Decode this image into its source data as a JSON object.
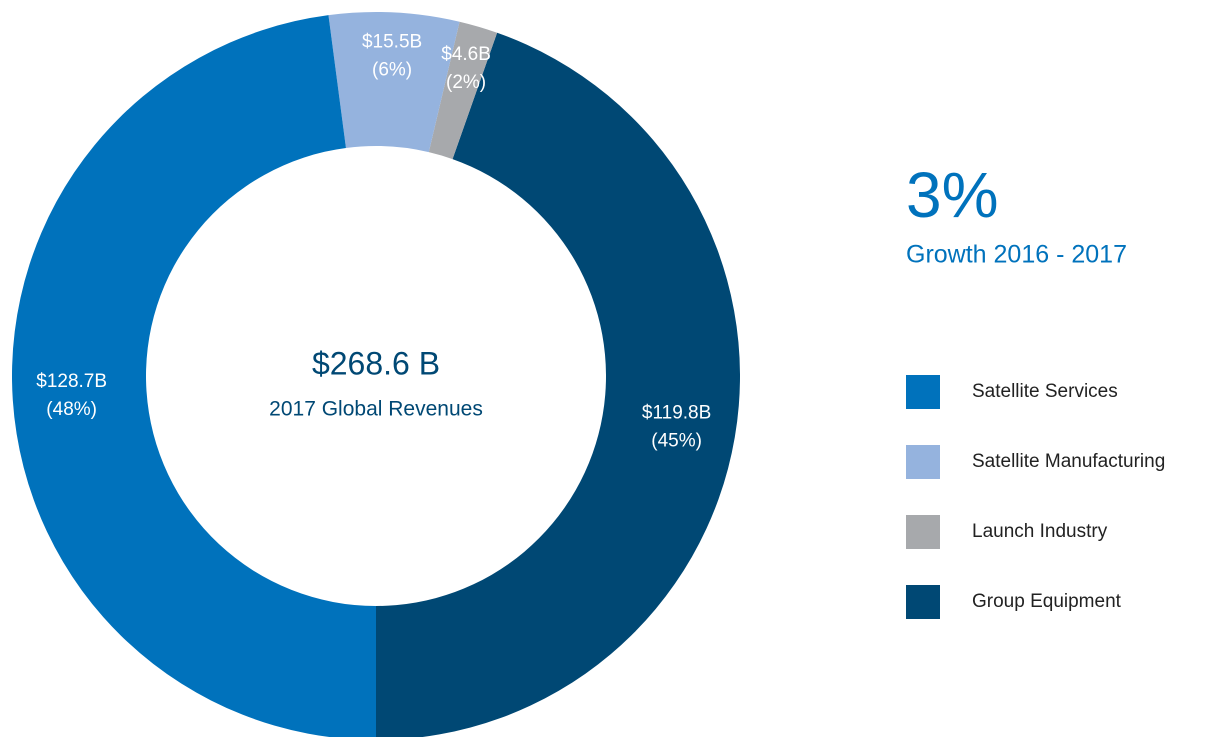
{
  "chart_data": {
    "type": "donut",
    "center_title": "$268.6 B",
    "center_subtitle": "2017 Global Revenues",
    "callout_value": "3%",
    "callout_label": "Growth 2016 - 2017",
    "categories": [
      "Satellite Services",
      "Satellite Manufacturing",
      "Launch Industry",
      "Group Equipment"
    ],
    "values": [
      128.7,
      15.5,
      4.6,
      119.8
    ],
    "value_labels": [
      "$128.7B",
      "$15.5B",
      "$4.6B",
      "$119.8B"
    ],
    "share_labels": [
      "(48%)",
      "(6%)",
      "(2%)",
      "(45%)"
    ],
    "colors": [
      "#0072bc",
      "#95b3de",
      "#a7a9ac",
      "#004874"
    ]
  }
}
